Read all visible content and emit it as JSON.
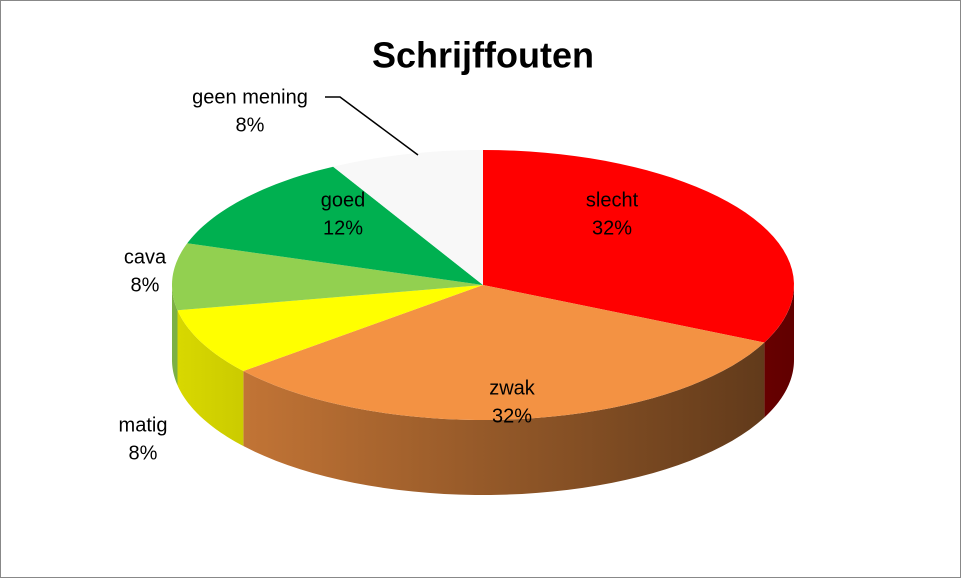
{
  "chart_data": {
    "type": "pie",
    "title": "Schrijffouten",
    "categories": [
      "slecht",
      "zwak",
      "matig",
      "cava",
      "goed",
      "geen mening"
    ],
    "values": [
      32,
      32,
      8,
      8,
      12,
      8
    ],
    "value_labels": [
      "32%",
      "32%",
      "8%",
      "8%",
      "12%",
      "8%"
    ],
    "colors": [
      "#ff0000",
      "#f39243",
      "#ffff00",
      "#92d050",
      "#00b050",
      "#f8f8f8"
    ]
  }
}
